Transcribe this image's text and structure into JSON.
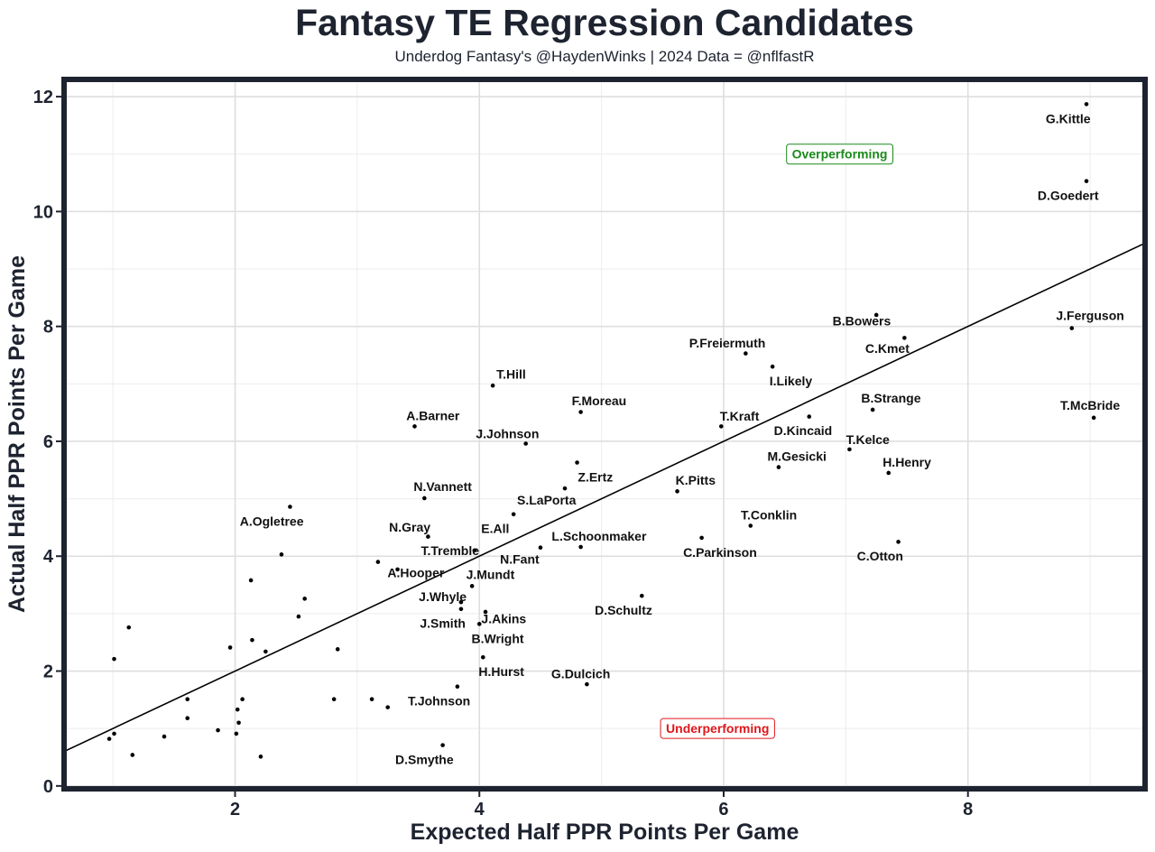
{
  "chart_data": {
    "type": "scatter",
    "title": "Fantasy TE Regression Candidates",
    "subtitle": "Underdog Fantasy's @HaydenWinks | 2024 Data = @nflfastR",
    "xlabel": "Expected Half PPR Points Per Game",
    "ylabel": "Actual Half PPR Points Per Game",
    "xlim": [
      0.6,
      9.45
    ],
    "ylim": [
      -0.05,
      12.3
    ],
    "x_ticks": [
      2,
      4,
      6,
      8
    ],
    "y_ticks": [
      0,
      2,
      4,
      6,
      8,
      10,
      12
    ],
    "grid": true,
    "reference_line": {
      "type": "y = x",
      "color": "#000000"
    },
    "annotations": [
      {
        "text": "Overperforming",
        "x": 6.95,
        "y": 11.0,
        "color": "#1a8a1a"
      },
      {
        "text": "Underperforming",
        "x": 5.95,
        "y": 1.0,
        "color": "#e0161b"
      }
    ],
    "points": [
      {
        "name": "G.Kittle",
        "x": 8.97,
        "y": 11.87,
        "dx": -0.15,
        "dy": -0.25
      },
      {
        "name": "D.Goedert",
        "x": 8.97,
        "y": 10.53,
        "dx": -0.15,
        "dy": -0.25
      },
      {
        "name": "J.Ferguson",
        "x": 8.85,
        "y": 7.97,
        "dx": 0.15,
        "dy": 0.22
      },
      {
        "name": "T.McBride",
        "x": 9.03,
        "y": 6.41,
        "dx": -0.03,
        "dy": 0.22
      },
      {
        "name": "B.Bowers",
        "x": 7.25,
        "y": 8.2,
        "dx": -0.12,
        "dy": -0.1
      },
      {
        "name": "C.Kmet",
        "x": 7.48,
        "y": 7.8,
        "dx": -0.14,
        "dy": -0.18
      },
      {
        "name": "P.Freiermuth",
        "x": 6.18,
        "y": 7.53,
        "dx": -0.15,
        "dy": 0.18
      },
      {
        "name": "I.Likely",
        "x": 6.4,
        "y": 7.3,
        "dx": 0.15,
        "dy": -0.25
      },
      {
        "name": "B.Strange",
        "x": 7.22,
        "y": 6.55,
        "dx": 0.15,
        "dy": 0.2
      },
      {
        "name": "D.Kincaid",
        "x": 6.7,
        "y": 6.43,
        "dx": -0.05,
        "dy": -0.24
      },
      {
        "name": "T.Kraft",
        "x": 5.98,
        "y": 6.26,
        "dx": 0.15,
        "dy": 0.18
      },
      {
        "name": "T.Kelce",
        "x": 7.03,
        "y": 5.86,
        "dx": 0.15,
        "dy": 0.17
      },
      {
        "name": "M.Gesicki",
        "x": 6.45,
        "y": 5.55,
        "dx": 0.15,
        "dy": 0.19
      },
      {
        "name": "H.Henry",
        "x": 7.35,
        "y": 5.45,
        "dx": 0.15,
        "dy": 0.19
      },
      {
        "name": "K.Pitts",
        "x": 5.62,
        "y": 5.13,
        "dx": 0.15,
        "dy": 0.19
      },
      {
        "name": "T.Conklin",
        "x": 6.22,
        "y": 4.53,
        "dx": 0.15,
        "dy": 0.19
      },
      {
        "name": "C.Parkinson",
        "x": 5.82,
        "y": 4.32,
        "dx": 0.15,
        "dy": -0.25
      },
      {
        "name": "C.Otton",
        "x": 7.43,
        "y": 4.25,
        "dx": -0.15,
        "dy": -0.25
      },
      {
        "name": "T.Hill",
        "x": 4.11,
        "y": 6.97,
        "dx": 0.15,
        "dy": 0.2
      },
      {
        "name": "F.Moreau",
        "x": 4.83,
        "y": 6.51,
        "dx": 0.15,
        "dy": 0.2
      },
      {
        "name": "A.Barner",
        "x": 3.47,
        "y": 6.26,
        "dx": 0.15,
        "dy": 0.19
      },
      {
        "name": "J.Johnson",
        "x": 4.38,
        "y": 5.96,
        "dx": -0.15,
        "dy": 0.17
      },
      {
        "name": "Z.Ertz",
        "x": 4.8,
        "y": 5.63,
        "dx": 0.15,
        "dy": -0.25
      },
      {
        "name": "N.Vannett",
        "x": 3.55,
        "y": 5.01,
        "dx": 0.15,
        "dy": 0.2
      },
      {
        "name": "S.LaPorta",
        "x": 4.7,
        "y": 5.18,
        "dx": -0.15,
        "dy": -0.2
      },
      {
        "name": "E.All",
        "x": 4.28,
        "y": 4.73,
        "dx": -0.15,
        "dy": -0.25
      },
      {
        "name": "N.Gray",
        "x": 3.58,
        "y": 4.34,
        "dx": -0.15,
        "dy": 0.17
      },
      {
        "name": "T.Tremble",
        "x": 3.96,
        "y": 4.1,
        "dx": -0.2,
        "dy": 0.0
      },
      {
        "name": "N.Fant",
        "x": 4.5,
        "y": 4.15,
        "dx": -0.17,
        "dy": -0.2
      },
      {
        "name": "L.Schoonmaker",
        "x": 4.83,
        "y": 4.16,
        "dx": 0.15,
        "dy": 0.19
      },
      {
        "name": "A.Hooper",
        "x": 3.33,
        "y": 3.77,
        "dx": 0.15,
        "dy": -0.06
      },
      {
        "name": "J.Mundt",
        "x": 3.94,
        "y": 3.48,
        "dx": 0.15,
        "dy": 0.2
      },
      {
        "name": "J.Whyle",
        "x": 3.85,
        "y": 3.2,
        "dx": -0.15,
        "dy": 0.1
      },
      {
        "name": "D.Schultz",
        "x": 5.33,
        "y": 3.31,
        "dx": -0.15,
        "dy": -0.25
      },
      {
        "name": "J.Akins",
        "x": 4.05,
        "y": 3.03,
        "dx": 0.15,
        "dy": -0.12
      },
      {
        "name": "J.Smith",
        "x": 3.85,
        "y": 3.08,
        "dx": -0.15,
        "dy": -0.25
      },
      {
        "name": "B.Wright",
        "x": 4.0,
        "y": 2.82,
        "dx": 0.15,
        "dy": -0.25
      },
      {
        "name": "H.Hurst",
        "x": 4.03,
        "y": 2.24,
        "dx": 0.15,
        "dy": -0.25
      },
      {
        "name": "G.Dulcich",
        "x": 4.88,
        "y": 1.77,
        "dx": -0.05,
        "dy": 0.18
      },
      {
        "name": "T.Johnson",
        "x": 3.82,
        "y": 1.73,
        "dx": -0.15,
        "dy": -0.25
      },
      {
        "name": "D.Smythe",
        "x": 3.7,
        "y": 0.71,
        "dx": -0.15,
        "dy": -0.25
      },
      {
        "name": "A.Ogletree",
        "x": 2.45,
        "y": 4.86,
        "dx": -0.15,
        "dy": -0.25
      },
      {
        "name": "",
        "x": 2.38,
        "y": 4.03
      },
      {
        "name": "",
        "x": 3.17,
        "y": 3.9
      },
      {
        "name": "",
        "x": 2.13,
        "y": 3.58
      },
      {
        "name": "",
        "x": 2.57,
        "y": 3.26
      },
      {
        "name": "",
        "x": 2.52,
        "y": 2.95
      },
      {
        "name": "",
        "x": 1.13,
        "y": 2.76
      },
      {
        "name": "",
        "x": 2.14,
        "y": 2.54
      },
      {
        "name": "",
        "x": 1.96,
        "y": 2.41
      },
      {
        "name": "",
        "x": 2.84,
        "y": 2.38
      },
      {
        "name": "",
        "x": 2.25,
        "y": 2.34
      },
      {
        "name": "",
        "x": 1.01,
        "y": 2.21
      },
      {
        "name": "",
        "x": 1.61,
        "y": 1.51
      },
      {
        "name": "",
        "x": 2.06,
        "y": 1.51
      },
      {
        "name": "",
        "x": 2.81,
        "y": 1.51
      },
      {
        "name": "",
        "x": 3.12,
        "y": 1.51
      },
      {
        "name": "",
        "x": 3.25,
        "y": 1.37
      },
      {
        "name": "",
        "x": 2.02,
        "y": 1.33
      },
      {
        "name": "",
        "x": 1.61,
        "y": 1.18
      },
      {
        "name": "",
        "x": 2.03,
        "y": 1.1
      },
      {
        "name": "",
        "x": 1.86,
        "y": 0.97
      },
      {
        "name": "",
        "x": 1.01,
        "y": 0.91
      },
      {
        "name": "",
        "x": 2.01,
        "y": 0.91
      },
      {
        "name": "",
        "x": 1.42,
        "y": 0.86
      },
      {
        "name": "",
        "x": 0.97,
        "y": 0.82
      },
      {
        "name": "",
        "x": 1.16,
        "y": 0.54
      },
      {
        "name": "",
        "x": 2.21,
        "y": 0.51
      }
    ]
  }
}
